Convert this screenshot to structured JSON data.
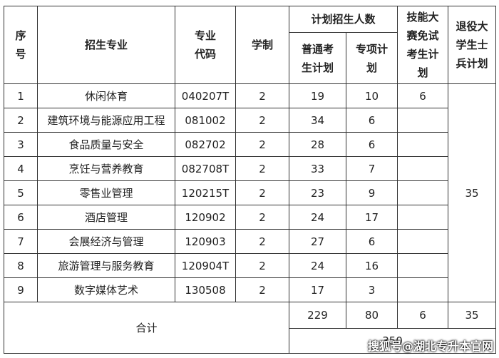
{
  "header": {
    "seq": "序\n号",
    "major": "招生专业",
    "code": "专业\n代码",
    "years": "学制",
    "plan": "计划招生人数",
    "general": "普通考\n生计划",
    "special": "专项计\n划",
    "skill": "技能大\n赛免试\n考生计\n划",
    "veteran": "退役大\n学生士\n兵计划"
  },
  "rows": [
    [
      1,
      "休闲体育",
      "040207T",
      2,
      19,
      10
    ],
    [
      2,
      "建筑环境与能源应用工程",
      "081002",
      2,
      34,
      6
    ],
    [
      3,
      "食品质量与安全",
      "082702",
      2,
      28,
      6
    ],
    [
      4,
      "烹饪与营养教育",
      "082708T",
      2,
      33,
      7
    ],
    [
      5,
      "零售业管理",
      "120215T",
      2,
      23,
      9
    ],
    [
      6,
      "酒店管理",
      "120902",
      2,
      24,
      17
    ],
    [
      7,
      "会展经济与管理",
      "120903",
      2,
      27,
      6
    ],
    [
      8,
      "旅游管理与服务教育",
      "120904T",
      2,
      24,
      16
    ],
    [
      9,
      "数字媒体艺术",
      "130508",
      2,
      17,
      3
    ]
  ],
  "skill_plan": 6,
  "veteran_plan": 35,
  "total": {
    "label": "合计",
    "general": 229,
    "special": 80,
    "skill": 6,
    "veteran": 35,
    "grand": 350
  },
  "watermark": "搜狐号@湖北专升本官网"
}
